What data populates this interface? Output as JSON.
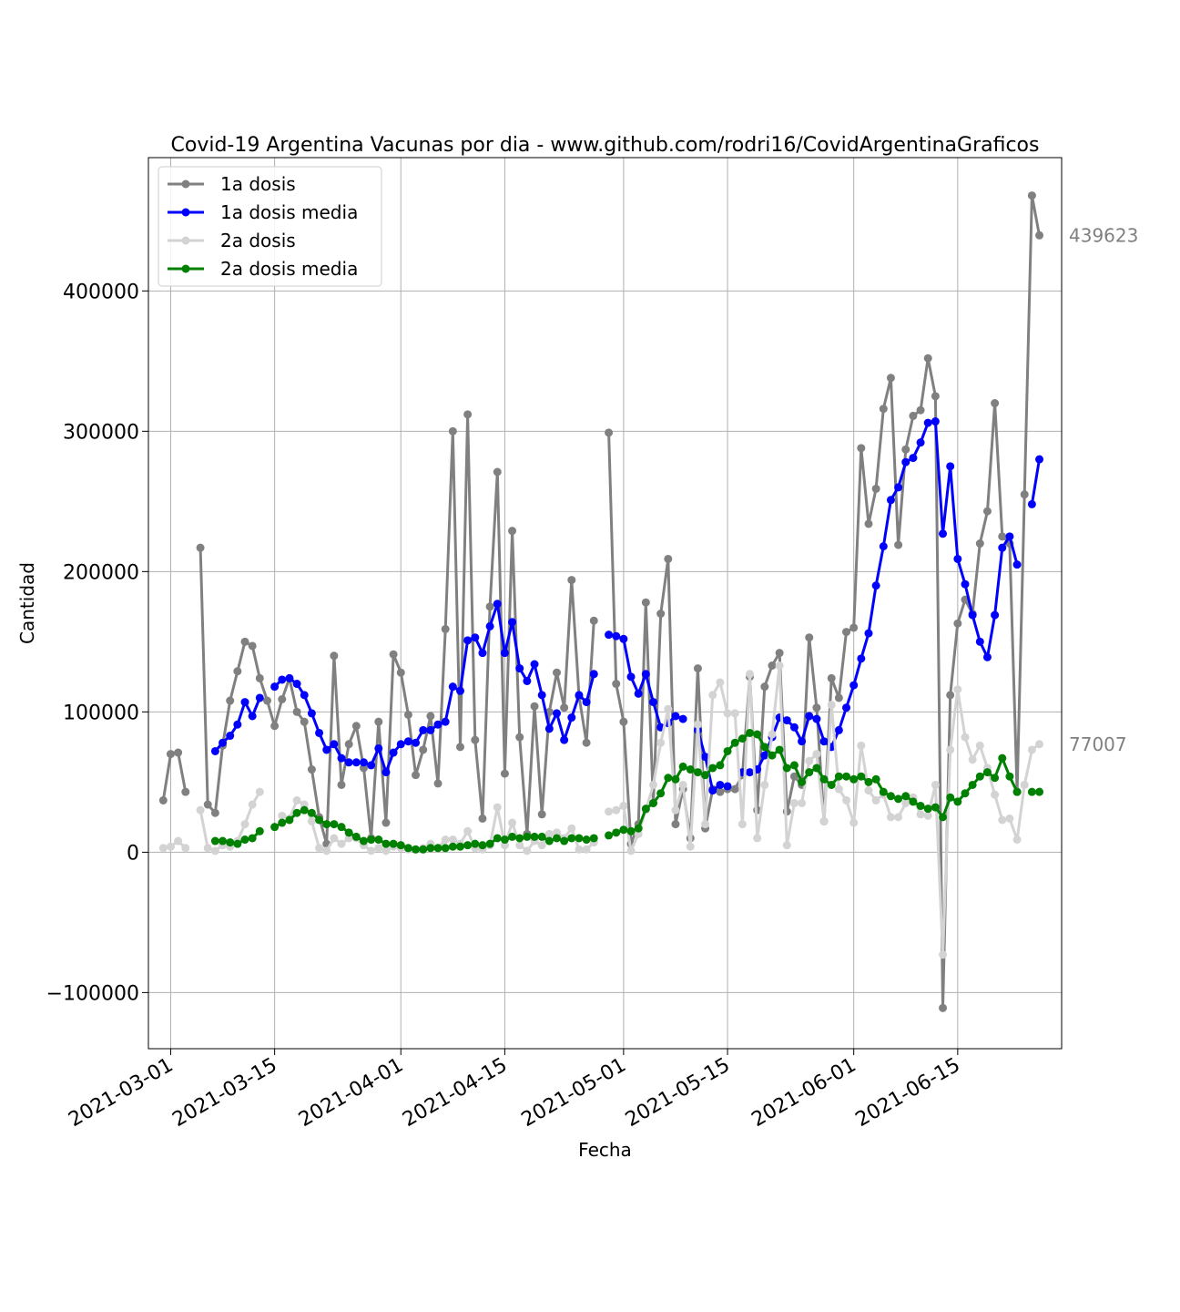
{
  "chart_data": {
    "type": "line",
    "title": "Covid-19 Argentina Vacunas por dia - www.github.com/rodri16/CovidArgentinaGraficos",
    "xlabel": "Fecha",
    "ylabel": "Cantidad",
    "x_start": "2021-02-28",
    "xlim": [
      "2021-02-26",
      "2021-06-29"
    ],
    "ylim": [
      -140000,
      495000
    ],
    "x_ticks": [
      "2021-03-01",
      "2021-03-15",
      "2021-04-01",
      "2021-04-15",
      "2021-05-01",
      "2021-05-15",
      "2021-06-01",
      "2021-06-15"
    ],
    "y_ticks": [
      -100000,
      0,
      100000,
      200000,
      300000,
      400000
    ],
    "y_tick_labels": [
      "−100000",
      "0",
      "100000",
      "200000",
      "300000",
      "400000"
    ],
    "grid": true,
    "legend_position": "top-left",
    "side_labels": [
      {
        "text": "439623",
        "value": 439623
      },
      {
        "text": "77007",
        "value": 77007
      }
    ],
    "series": [
      {
        "name": "1a dosis",
        "color": "#808080",
        "offset": 0,
        "values": [
          37000,
          70000,
          71000,
          43000,
          null,
          217000,
          34000,
          28000,
          76000,
          108000,
          129000,
          150000,
          147000,
          124000,
          108000,
          90000,
          109000,
          124000,
          100000,
          93000,
          59000,
          25000,
          6000,
          140000,
          48000,
          77000,
          90000,
          60000,
          10000,
          93000,
          21000,
          141000,
          128000,
          98000,
          55000,
          73000,
          97000,
          49000,
          159000,
          300000,
          75000,
          312000,
          80000,
          24000,
          175000,
          271000,
          56000,
          229000,
          82000,
          13000,
          104000,
          27000,
          100000,
          128000,
          103000,
          194000,
          111000,
          78000,
          165000,
          null,
          299000,
          120000,
          93000,
          6000,
          20000,
          178000,
          35000,
          170000,
          209000,
          20000,
          45000,
          10000,
          131000,
          17000,
          45000,
          43000,
          45000,
          45000,
          55000,
          125000,
          30000,
          118000,
          133000,
          142000,
          29000,
          54000,
          48000,
          153000,
          103000,
          22000,
          124000,
          110000,
          157000,
          160000,
          288000,
          234000,
          259000,
          316000,
          338000,
          219000,
          287000,
          311000,
          315000,
          352000,
          325000,
          -111000,
          112000,
          163000,
          180000,
          170000,
          220000,
          243000,
          320000,
          225000,
          220000,
          43000,
          255000,
          468000,
          439623
        ]
      },
      {
        "name": "1a dosis media",
        "color": "#0000ff",
        "offset": 7,
        "values": [
          72000,
          78000,
          83000,
          91000,
          107000,
          97000,
          110000,
          null,
          118000,
          123000,
          124000,
          120000,
          112000,
          99000,
          85000,
          73000,
          77000,
          67000,
          64000,
          64000,
          64000,
          62000,
          74000,
          57000,
          71000,
          77000,
          79000,
          78000,
          87000,
          87000,
          91000,
          93000,
          118000,
          115000,
          151000,
          153000,
          142000,
          161000,
          177000,
          142000,
          164000,
          131000,
          122000,
          134000,
          112000,
          88000,
          99000,
          80000,
          96000,
          112000,
          107000,
          127000,
          null,
          155000,
          154000,
          152000,
          125000,
          113000,
          127000,
          107000,
          89000,
          92000,
          97000,
          95000,
          null,
          87000,
          68000,
          44000,
          48000,
          47000,
          null,
          57000,
          57000,
          59000,
          69000,
          82000,
          96000,
          94000,
          89000,
          79000,
          97000,
          95000,
          79000,
          75000,
          87000,
          103000,
          119000,
          138000,
          156000,
          190000,
          218000,
          251000,
          260000,
          278000,
          281000,
          292000,
          306000,
          307000,
          227000,
          275000,
          209000,
          191000,
          169000,
          150000,
          139000,
          169000,
          217000,
          225000,
          205000,
          null,
          248000,
          280000
        ]
      },
      {
        "name": "2a dosis",
        "color": "#d3d3d3",
        "offset": 0,
        "values": [
          3000,
          4000,
          8000,
          3000,
          null,
          30000,
          3000,
          1000,
          5000,
          4000,
          8000,
          20000,
          34000,
          43000,
          null,
          null,
          26000,
          24000,
          37000,
          34000,
          22000,
          3000,
          1000,
          10000,
          6000,
          10000,
          10000,
          5000,
          1000,
          3000,
          1000,
          4000,
          3000,
          2000,
          2000,
          3000,
          6000,
          3000,
          9000,
          9000,
          6000,
          15000,
          3000,
          2000,
          5000,
          32000,
          5000,
          21000,
          5000,
          1000,
          8000,
          5000,
          13000,
          14000,
          10000,
          17000,
          2000,
          2000,
          7000,
          null,
          29000,
          30000,
          33000,
          1000,
          13000,
          30000,
          48000,
          78000,
          102000,
          30000,
          48000,
          4000,
          91000,
          20000,
          112000,
          121000,
          99000,
          99000,
          20000,
          127000,
          10000,
          48000,
          84000,
          133000,
          5000,
          35000,
          35000,
          65000,
          70000,
          22000,
          105000,
          45000,
          37000,
          21000,
          76000,
          44000,
          37000,
          41000,
          25000,
          25000,
          35000,
          39000,
          27000,
          26000,
          48000,
          -73000,
          73000,
          116000,
          82000,
          66000,
          76000,
          60000,
          41000,
          23000,
          24000,
          9000,
          48000,
          73000,
          77007
        ]
      },
      {
        "name": "2a dosis media",
        "color": "#008000",
        "offset": 7,
        "values": [
          8000,
          8000,
          7000,
          6000,
          9000,
          10000,
          15000,
          null,
          18000,
          21000,
          23000,
          28000,
          30000,
          28000,
          23000,
          20000,
          20000,
          18000,
          14000,
          11000,
          8000,
          9000,
          9000,
          6000,
          6000,
          5000,
          3000,
          2000,
          2000,
          3000,
          3000,
          3000,
          4000,
          4000,
          5000,
          6000,
          5000,
          6000,
          10000,
          9000,
          11000,
          10000,
          11000,
          11000,
          11000,
          8000,
          10000,
          8000,
          10000,
          10000,
          9000,
          10000,
          null,
          12000,
          14000,
          16000,
          15000,
          17000,
          31000,
          35000,
          42000,
          53000,
          52000,
          61000,
          59000,
          57000,
          55000,
          60000,
          62000,
          72000,
          78000,
          81000,
          85000,
          84000,
          75000,
          69000,
          73000,
          60000,
          62000,
          50000,
          57000,
          60000,
          52000,
          48000,
          54000,
          54000,
          52000,
          54000,
          50000,
          52000,
          43000,
          40000,
          38000,
          40000,
          36000,
          33000,
          31000,
          32000,
          25000,
          39000,
          36000,
          42000,
          48000,
          54000,
          57000,
          53000,
          67000,
          54000,
          43000,
          null,
          43000,
          43000
        ]
      }
    ]
  }
}
